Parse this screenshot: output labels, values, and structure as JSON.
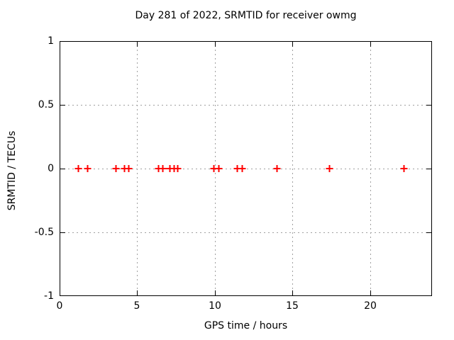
{
  "chart_data": {
    "type": "scatter",
    "title": "Day 281 of 2022, SRMTID for receiver owmg",
    "xlabel": "GPS time / hours",
    "ylabel": "SRMTID / TECUs",
    "xlim": [
      0,
      24
    ],
    "ylim": [
      -1,
      1
    ],
    "grid": "dotted",
    "legend": "none",
    "marker": "plus",
    "marker_color": "#ff0000",
    "grid_color": "#a0a0a0",
    "axis_color": "#000000",
    "background_color": "#ffffff",
    "xticks": [
      {
        "value": 0,
        "label": "0",
        "grid": false
      },
      {
        "value": 5,
        "label": "5",
        "grid": true
      },
      {
        "value": 10,
        "label": "10",
        "grid": true
      },
      {
        "value": 15,
        "label": "15",
        "grid": true
      },
      {
        "value": 20,
        "label": "20",
        "grid": true
      }
    ],
    "yticks": [
      {
        "value": 1,
        "label": "1",
        "grid": false
      },
      {
        "value": 0.5,
        "label": "0.5",
        "grid": true
      },
      {
        "value": 0,
        "label": "0",
        "grid": true
      },
      {
        "value": -0.5,
        "label": "-0.5",
        "grid": true
      },
      {
        "value": -1,
        "label": "-1",
        "grid": false
      }
    ],
    "series": [
      {
        "name": "SRMTID",
        "x": [
          1.19,
          1.79,
          3.62,
          4.17,
          4.44,
          6.35,
          6.64,
          7.07,
          7.34,
          7.6,
          9.94,
          10.23,
          11.42,
          11.73,
          13.97,
          17.36,
          22.17
        ],
        "y": [
          0,
          0,
          0,
          0,
          0,
          0,
          0,
          0,
          0,
          0,
          0,
          0,
          0,
          0,
          0,
          0,
          0
        ]
      }
    ]
  }
}
